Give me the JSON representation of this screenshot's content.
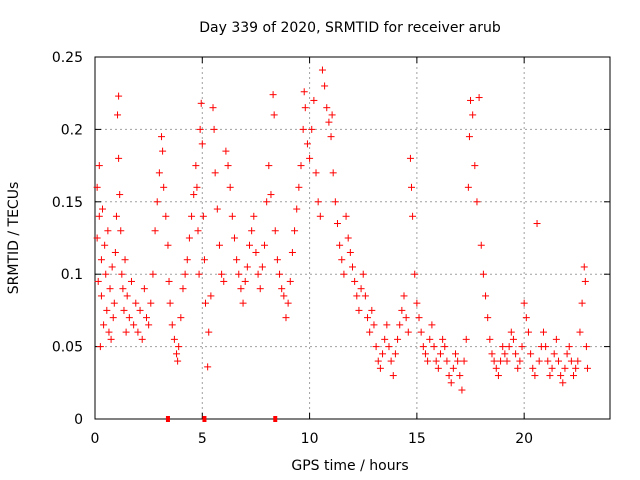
{
  "chart_data": {
    "type": "scatter",
    "title": "Day 339 of 2020, SRMTID for receiver arub",
    "xlabel": "GPS time / hours",
    "ylabel": "SRMTID / TECUs",
    "xlim": [
      0,
      24
    ],
    "ylim": [
      0,
      0.25
    ],
    "x_ticks": [
      0,
      5,
      10,
      15,
      20
    ],
    "x_tick_labels": [
      "0",
      "5",
      "10",
      "15",
      "20"
    ],
    "y_ticks": [
      0,
      0.05,
      0.1,
      0.15,
      0.2,
      0.25
    ],
    "y_tick_labels": [
      "0",
      "0.05",
      "0.1",
      "0.15",
      "0.2",
      "0.25"
    ],
    "grid": true,
    "marker": "+",
    "color": "#ff0000",
    "series": [
      {
        "name": "SRMTID",
        "points": [
          [
            0.1,
            0.16
          ],
          [
            0.1,
            0.125
          ],
          [
            0.15,
            0.095
          ],
          [
            0.2,
            0.14
          ],
          [
            0.2,
            0.175
          ],
          [
            0.25,
            0.05
          ],
          [
            0.3,
            0.11
          ],
          [
            0.3,
            0.085
          ],
          [
            0.35,
            0.145
          ],
          [
            0.4,
            0.065
          ],
          [
            0.45,
            0.12
          ],
          [
            0.5,
            0.1
          ],
          [
            0.55,
            0.075
          ],
          [
            0.6,
            0.13
          ],
          [
            0.65,
            0.06
          ],
          [
            0.7,
            0.09
          ],
          [
            0.75,
            0.055
          ],
          [
            0.8,
            0.105
          ],
          [
            0.85,
            0.07
          ],
          [
            0.9,
            0.08
          ],
          [
            0.95,
            0.115
          ],
          [
            1.0,
            0.14
          ],
          [
            1.05,
            0.21
          ],
          [
            1.1,
            0.223
          ],
          [
            1.1,
            0.18
          ],
          [
            1.15,
            0.155
          ],
          [
            1.2,
            0.13
          ],
          [
            1.25,
            0.1
          ],
          [
            1.3,
            0.09
          ],
          [
            1.35,
            0.075
          ],
          [
            1.4,
            0.11
          ],
          [
            1.45,
            0.06
          ],
          [
            1.5,
            0.085
          ],
          [
            1.6,
            0.07
          ],
          [
            1.7,
            0.095
          ],
          [
            1.8,
            0.065
          ],
          [
            1.9,
            0.08
          ],
          [
            2.0,
            0.06
          ],
          [
            2.1,
            0.075
          ],
          [
            2.2,
            0.055
          ],
          [
            2.3,
            0.09
          ],
          [
            2.4,
            0.07
          ],
          [
            2.5,
            0.065
          ],
          [
            2.6,
            0.08
          ],
          [
            2.7,
            0.1
          ],
          [
            2.8,
            0.13
          ],
          [
            2.9,
            0.15
          ],
          [
            3.0,
            0.17
          ],
          [
            3.1,
            0.195
          ],
          [
            3.15,
            0.185
          ],
          [
            3.2,
            0.16
          ],
          [
            3.3,
            0.14
          ],
          [
            3.4,
            0.12
          ],
          [
            3.45,
            0.095
          ],
          [
            3.5,
            0.08
          ],
          [
            3.6,
            0.065
          ],
          [
            3.7,
            0.055
          ],
          [
            3.8,
            0.045
          ],
          [
            3.85,
            0.04
          ],
          [
            3.9,
            0.05
          ],
          [
            4.0,
            0.07
          ],
          [
            4.1,
            0.09
          ],
          [
            4.2,
            0.1
          ],
          [
            4.3,
            0.11
          ],
          [
            4.4,
            0.125
          ],
          [
            4.5,
            0.14
          ],
          [
            4.6,
            0.155
          ],
          [
            4.7,
            0.175
          ],
          [
            4.75,
            0.16
          ],
          [
            4.8,
            0.13
          ],
          [
            4.85,
            0.1
          ],
          [
            4.9,
            0.2
          ],
          [
            4.95,
            0.218
          ],
          [
            5.0,
            0.19
          ],
          [
            5.05,
            0.14
          ],
          [
            5.1,
            0.11
          ],
          [
            5.15,
            0.08
          ],
          [
            5.25,
            0.036
          ],
          [
            5.3,
            0.06
          ],
          [
            5.4,
            0.085
          ],
          [
            5.5,
            0.215
          ],
          [
            5.55,
            0.2
          ],
          [
            5.6,
            0.17
          ],
          [
            5.7,
            0.145
          ],
          [
            5.8,
            0.12
          ],
          [
            5.9,
            0.1
          ],
          [
            6.0,
            0.095
          ],
          [
            6.1,
            0.185
          ],
          [
            6.2,
            0.175
          ],
          [
            6.3,
            0.16
          ],
          [
            6.4,
            0.14
          ],
          [
            6.5,
            0.125
          ],
          [
            6.6,
            0.11
          ],
          [
            6.7,
            0.1
          ],
          [
            6.8,
            0.09
          ],
          [
            6.9,
            0.08
          ],
          [
            7.0,
            0.095
          ],
          [
            7.1,
            0.105
          ],
          [
            7.2,
            0.12
          ],
          [
            7.3,
            0.13
          ],
          [
            7.4,
            0.14
          ],
          [
            7.5,
            0.115
          ],
          [
            7.6,
            0.1
          ],
          [
            7.7,
            0.09
          ],
          [
            7.8,
            0.105
          ],
          [
            7.9,
            0.12
          ],
          [
            8.0,
            0.15
          ],
          [
            8.1,
            0.175
          ],
          [
            8.2,
            0.155
          ],
          [
            8.3,
            0.224
          ],
          [
            8.35,
            0.21
          ],
          [
            8.4,
            0.13
          ],
          [
            8.5,
            0.11
          ],
          [
            8.6,
            0.1
          ],
          [
            8.7,
            0.09
          ],
          [
            8.8,
            0.085
          ],
          [
            8.9,
            0.07
          ],
          [
            9.0,
            0.08
          ],
          [
            9.1,
            0.095
          ],
          [
            9.2,
            0.115
          ],
          [
            9.3,
            0.13
          ],
          [
            9.4,
            0.145
          ],
          [
            9.5,
            0.16
          ],
          [
            9.6,
            0.175
          ],
          [
            9.7,
            0.2
          ],
          [
            9.75,
            0.226
          ],
          [
            9.8,
            0.215
          ],
          [
            9.9,
            0.19
          ],
          [
            10.0,
            0.18
          ],
          [
            10.1,
            0.2
          ],
          [
            10.2,
            0.22
          ],
          [
            10.3,
            0.17
          ],
          [
            10.4,
            0.15
          ],
          [
            10.5,
            0.14
          ],
          [
            10.6,
            0.241
          ],
          [
            10.7,
            0.23
          ],
          [
            10.8,
            0.215
          ],
          [
            10.9,
            0.205
          ],
          [
            11.0,
            0.195
          ],
          [
            11.05,
            0.21
          ],
          [
            11.1,
            0.17
          ],
          [
            11.2,
            0.15
          ],
          [
            11.3,
            0.135
          ],
          [
            11.4,
            0.12
          ],
          [
            11.5,
            0.11
          ],
          [
            11.6,
            0.1
          ],
          [
            11.7,
            0.14
          ],
          [
            11.8,
            0.125
          ],
          [
            11.9,
            0.115
          ],
          [
            12.0,
            0.105
          ],
          [
            12.1,
            0.095
          ],
          [
            12.2,
            0.085
          ],
          [
            12.3,
            0.075
          ],
          [
            12.4,
            0.09
          ],
          [
            12.5,
            0.1
          ],
          [
            12.6,
            0.085
          ],
          [
            12.7,
            0.07
          ],
          [
            12.8,
            0.06
          ],
          [
            12.9,
            0.075
          ],
          [
            13.0,
            0.065
          ],
          [
            13.1,
            0.05
          ],
          [
            13.2,
            0.04
          ],
          [
            13.3,
            0.035
          ],
          [
            13.4,
            0.045
          ],
          [
            13.5,
            0.055
          ],
          [
            13.6,
            0.065
          ],
          [
            13.7,
            0.05
          ],
          [
            13.8,
            0.04
          ],
          [
            13.9,
            0.03
          ],
          [
            14.0,
            0.045
          ],
          [
            14.1,
            0.055
          ],
          [
            14.2,
            0.065
          ],
          [
            14.3,
            0.075
          ],
          [
            14.4,
            0.085
          ],
          [
            14.5,
            0.07
          ],
          [
            14.6,
            0.06
          ],
          [
            14.7,
            0.18
          ],
          [
            14.75,
            0.16
          ],
          [
            14.8,
            0.14
          ],
          [
            14.9,
            0.1
          ],
          [
            15.0,
            0.08
          ],
          [
            15.1,
            0.07
          ],
          [
            15.2,
            0.06
          ],
          [
            15.3,
            0.05
          ],
          [
            15.4,
            0.045
          ],
          [
            15.5,
            0.04
          ],
          [
            15.6,
            0.055
          ],
          [
            15.7,
            0.065
          ],
          [
            15.8,
            0.05
          ],
          [
            15.9,
            0.04
          ],
          [
            16.0,
            0.035
          ],
          [
            16.1,
            0.045
          ],
          [
            16.2,
            0.055
          ],
          [
            16.3,
            0.05
          ],
          [
            16.4,
            0.04
          ],
          [
            16.5,
            0.03
          ],
          [
            16.6,
            0.025
          ],
          [
            16.7,
            0.035
          ],
          [
            16.8,
            0.045
          ],
          [
            16.9,
            0.04
          ],
          [
            17.0,
            0.03
          ],
          [
            17.1,
            0.02
          ],
          [
            17.2,
            0.04
          ],
          [
            17.3,
            0.055
          ],
          [
            17.4,
            0.16
          ],
          [
            17.45,
            0.195
          ],
          [
            17.5,
            0.22
          ],
          [
            17.6,
            0.21
          ],
          [
            17.7,
            0.175
          ],
          [
            17.8,
            0.15
          ],
          [
            17.9,
            0.222
          ],
          [
            18.0,
            0.12
          ],
          [
            18.1,
            0.1
          ],
          [
            18.2,
            0.085
          ],
          [
            18.3,
            0.07
          ],
          [
            18.4,
            0.055
          ],
          [
            18.5,
            0.045
          ],
          [
            18.6,
            0.04
          ],
          [
            18.7,
            0.035
          ],
          [
            18.8,
            0.03
          ],
          [
            18.9,
            0.04
          ],
          [
            19.0,
            0.05
          ],
          [
            19.1,
            0.045
          ],
          [
            19.2,
            0.04
          ],
          [
            19.3,
            0.05
          ],
          [
            19.4,
            0.06
          ],
          [
            19.5,
            0.055
          ],
          [
            19.6,
            0.045
          ],
          [
            19.7,
            0.035
          ],
          [
            19.8,
            0.04
          ],
          [
            19.9,
            0.05
          ],
          [
            20.0,
            0.08
          ],
          [
            20.1,
            0.07
          ],
          [
            20.2,
            0.06
          ],
          [
            20.3,
            0.045
          ],
          [
            20.4,
            0.035
          ],
          [
            20.5,
            0.03
          ],
          [
            20.6,
            0.135
          ],
          [
            20.7,
            0.04
          ],
          [
            20.8,
            0.05
          ],
          [
            20.9,
            0.06
          ],
          [
            21.0,
            0.05
          ],
          [
            21.1,
            0.04
          ],
          [
            21.2,
            0.03
          ],
          [
            21.3,
            0.035
          ],
          [
            21.4,
            0.045
          ],
          [
            21.5,
            0.055
          ],
          [
            21.6,
            0.04
          ],
          [
            21.7,
            0.03
          ],
          [
            21.8,
            0.025
          ],
          [
            21.9,
            0.035
          ],
          [
            22.0,
            0.045
          ],
          [
            22.1,
            0.05
          ],
          [
            22.2,
            0.04
          ],
          [
            22.3,
            0.03
          ],
          [
            22.4,
            0.035
          ],
          [
            22.5,
            0.04
          ],
          [
            22.6,
            0.06
          ],
          [
            22.7,
            0.08
          ],
          [
            22.8,
            0.105
          ],
          [
            22.85,
            0.095
          ],
          [
            22.9,
            0.05
          ],
          [
            22.95,
            0.035
          ]
        ]
      }
    ],
    "lost_lock_markers_x": [
      3.4,
      5.1,
      8.4
    ]
  }
}
